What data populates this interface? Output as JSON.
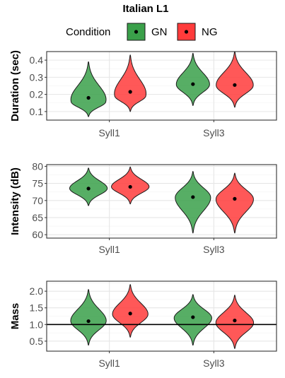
{
  "title": "Italian L1",
  "legend": {
    "title": "Condition",
    "items": [
      {
        "label": "GN",
        "color": "#3aa04a"
      },
      {
        "label": "NG",
        "color": "#ff3b3b"
      }
    ]
  },
  "chart_data": [
    {
      "type": "violin",
      "ylabel": "Duration (sec)",
      "ylim": [
        0.05,
        0.45
      ],
      "yticks": [
        0.1,
        0.2,
        0.3,
        0.4
      ],
      "ytick_labels": [
        "0.1",
        "0.2",
        "0.3",
        "0.4"
      ],
      "categories": [
        "Syll1",
        "Syll3"
      ],
      "grid": true,
      "series": [
        {
          "name": "GN",
          "color": "#3aa04a",
          "categories": [
            "Syll1",
            "Syll3"
          ],
          "mins": [
            0.07,
            0.135
          ],
          "maxs": [
            0.39,
            0.44
          ],
          "modes": [
            0.155,
            0.255
          ],
          "widths": [
            0.95,
            0.85
          ],
          "means": [
            0.18,
            0.26
          ]
        },
        {
          "name": "NG",
          "color": "#ff3b3b",
          "categories": [
            "Syll1",
            "Syll3"
          ],
          "mins": [
            0.1,
            0.125
          ],
          "maxs": [
            0.43,
            0.45
          ],
          "modes": [
            0.19,
            0.25
          ],
          "widths": [
            0.85,
            0.95
          ],
          "means": [
            0.215,
            0.255
          ]
        }
      ]
    },
    {
      "type": "violin",
      "ylabel": "Intensity (dB)",
      "ylim": [
        59,
        80.5
      ],
      "yticks": [
        60,
        65,
        70,
        75,
        80
      ],
      "ytick_labels": [
        "60",
        "65",
        "70",
        "75",
        "80"
      ],
      "categories": [
        "Syll1",
        "Syll3"
      ],
      "grid": true,
      "series": [
        {
          "name": "GN",
          "color": "#3aa04a",
          "categories": [
            "Syll1",
            "Syll3"
          ],
          "mins": [
            68.5,
            60.5
          ],
          "maxs": [
            79.5,
            78.5
          ],
          "modes": [
            73.5,
            71
          ],
          "widths": [
            0.95,
            0.9
          ],
          "means": [
            73.5,
            71
          ]
        },
        {
          "name": "NG",
          "color": "#ff3b3b",
          "categories": [
            "Syll1",
            "Syll3"
          ],
          "mins": [
            69,
            60.5
          ],
          "maxs": [
            79.8,
            78
          ],
          "modes": [
            74,
            70.5
          ],
          "widths": [
            0.95,
            0.95
          ],
          "means": [
            74,
            70.5
          ]
        }
      ]
    },
    {
      "type": "violin",
      "ylabel": "Mass",
      "ylim": [
        0.2,
        2.3
      ],
      "yticks": [
        0.5,
        1.0,
        1.5,
        2.0
      ],
      "ytick_labels": [
        "0.5",
        "1.0",
        "1.5",
        "2.0"
      ],
      "categories": [
        "Syll1",
        "Syll3"
      ],
      "grid": true,
      "hline": 1.0,
      "series": [
        {
          "name": "GN",
          "color": "#3aa04a",
          "categories": [
            "Syll1",
            "Syll3"
          ],
          "mins": [
            0.38,
            0.38
          ],
          "maxs": [
            2.05,
            1.9
          ],
          "modes": [
            1.1,
            1.2
          ],
          "widths": [
            0.9,
            0.95
          ],
          "means": [
            1.1,
            1.22
          ]
        },
        {
          "name": "NG",
          "color": "#ff3b3b",
          "categories": [
            "Syll1",
            "Syll3"
          ],
          "mins": [
            0.62,
            0.28
          ],
          "maxs": [
            2.2,
            1.88
          ],
          "modes": [
            1.3,
            1.05
          ],
          "widths": [
            0.9,
            0.95
          ],
          "means": [
            1.33,
            1.12
          ]
        }
      ]
    }
  ]
}
